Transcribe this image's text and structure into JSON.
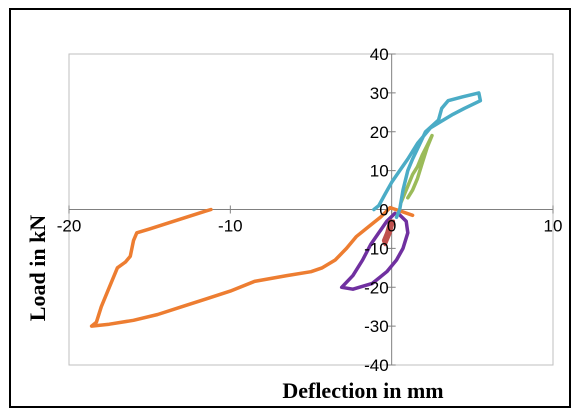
{
  "chart_data": {
    "type": "line",
    "xlabel": "Deflection in mm",
    "ylabel": "Load in kN",
    "xlim": [
      -20,
      10
    ],
    "ylim": [
      -40,
      40
    ],
    "x_ticks": [
      -20,
      -10,
      0,
      10
    ],
    "y_ticks": [
      -40,
      -30,
      -20,
      -10,
      0,
      10,
      20,
      30,
      40
    ],
    "grid": false,
    "series": [
      {
        "color": "#ED7D31",
        "points": [
          [
            -11.2,
            0
          ],
          [
            -11.6,
            -0.5
          ],
          [
            -13.5,
            -3
          ],
          [
            -15.0,
            -5
          ],
          [
            -15.8,
            -6
          ],
          [
            -16.0,
            -8
          ],
          [
            -16.2,
            -12
          ],
          [
            -16.5,
            -13.5
          ],
          [
            -17.0,
            -15
          ],
          [
            -17.5,
            -20
          ],
          [
            -18.0,
            -25
          ],
          [
            -18.3,
            -29
          ],
          [
            -18.6,
            -30
          ],
          [
            -17.5,
            -29.5
          ],
          [
            -16.0,
            -28.5
          ],
          [
            -14.5,
            -27
          ],
          [
            -13.0,
            -25
          ],
          [
            -11.5,
            -23
          ],
          [
            -10.0,
            -21
          ],
          [
            -8.5,
            -18.5
          ],
          [
            -6.5,
            -17
          ],
          [
            -5.0,
            -16
          ],
          [
            -4.3,
            -15
          ],
          [
            -3.5,
            -13
          ],
          [
            -2.8,
            -10
          ],
          [
            -2.2,
            -7
          ],
          [
            -1.3,
            -4
          ],
          [
            -0.7,
            -2
          ],
          [
            -0.1,
            0.5
          ],
          [
            0.6,
            -0.5
          ],
          [
            1.3,
            -1.5
          ]
        ]
      },
      {
        "color": "#7030A0",
        "points": [
          [
            0.2,
            -1
          ],
          [
            -0.3,
            -3
          ],
          [
            -0.8,
            -6
          ],
          [
            -1.3,
            -9
          ],
          [
            -1.8,
            -13
          ],
          [
            -2.4,
            -17
          ],
          [
            -3.1,
            -20
          ],
          [
            -2.4,
            -20.5
          ],
          [
            -1.2,
            -19
          ],
          [
            -0.3,
            -16
          ],
          [
            0.3,
            -13
          ],
          [
            0.7,
            -10
          ],
          [
            1.0,
            -6
          ],
          [
            0.9,
            -3
          ],
          [
            0.4,
            -1
          ]
        ]
      },
      {
        "color": "#C0504D",
        "points": [
          [
            -0.1,
            -3
          ],
          [
            -0.3,
            -6
          ],
          [
            -0.5,
            -8
          ],
          [
            -0.4,
            -9
          ],
          [
            -0.1,
            -6
          ],
          [
            0.1,
            -3
          ],
          [
            -0.1,
            -3
          ]
        ]
      },
      {
        "color": "#9BBB59",
        "points": [
          [
            0.6,
            2
          ],
          [
            1.0,
            6
          ],
          [
            1.3,
            9
          ],
          [
            1.6,
            11
          ],
          [
            1.9,
            14
          ],
          [
            2.2,
            16.5
          ],
          [
            2.5,
            19
          ],
          [
            2.2,
            16
          ],
          [
            1.9,
            12
          ],
          [
            1.6,
            8
          ],
          [
            1.3,
            5
          ],
          [
            1.0,
            3
          ]
        ]
      },
      {
        "color": "#4BACC6",
        "points": [
          [
            0.3,
            -2
          ],
          [
            0.5,
            0
          ],
          [
            0.7,
            5
          ],
          [
            1.0,
            10
          ],
          [
            1.3,
            13
          ],
          [
            1.7,
            16.5
          ],
          [
            2.1,
            20
          ],
          [
            2.9,
            23
          ],
          [
            3.1,
            26
          ],
          [
            3.5,
            28
          ],
          [
            4.4,
            29
          ],
          [
            5.4,
            30
          ],
          [
            5.5,
            28
          ],
          [
            4.5,
            26
          ],
          [
            3.8,
            24.5
          ],
          [
            3.0,
            22.5
          ],
          [
            2.4,
            21
          ],
          [
            1.6,
            17
          ],
          [
            1.0,
            13
          ],
          [
            0.5,
            10
          ],
          [
            0.0,
            7
          ],
          [
            -0.4,
            4
          ],
          [
            -0.8,
            1
          ],
          [
            -1.1,
            0
          ]
        ]
      }
    ]
  }
}
